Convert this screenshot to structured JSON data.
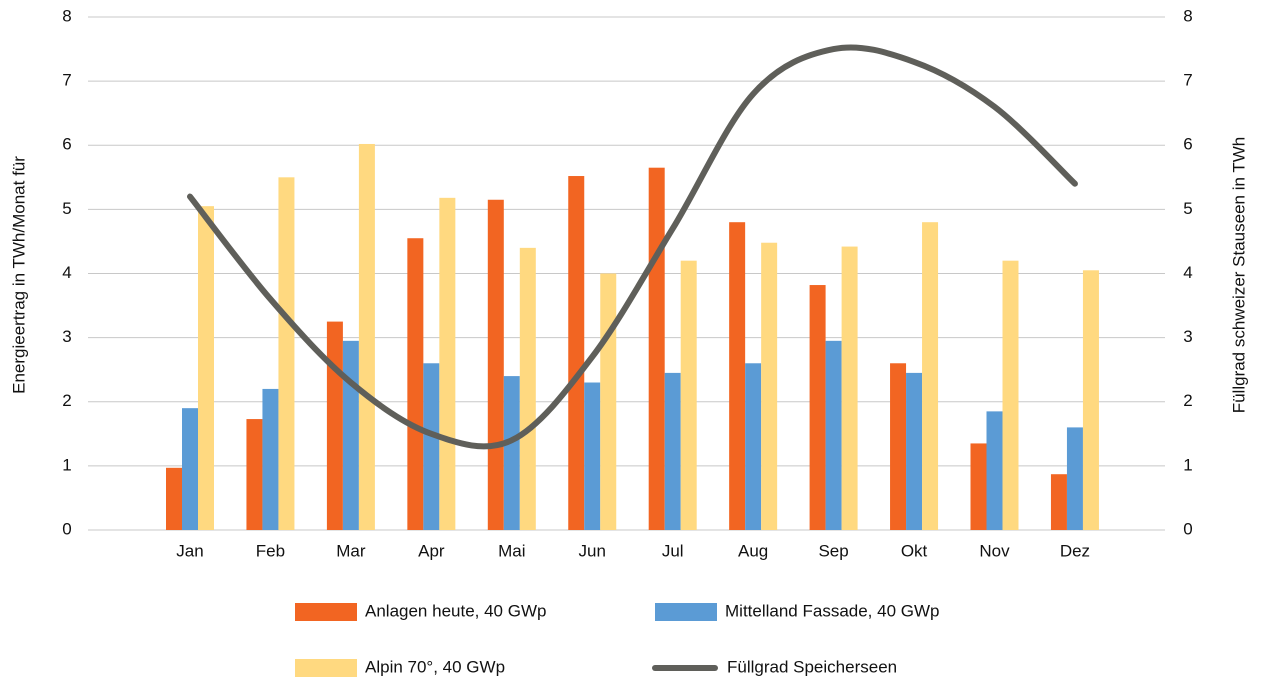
{
  "chart_data": {
    "type": "bar",
    "y_label": "Energieertrag in TWh/Monat für",
    "y2_label": "Füllgrad schweizer Stauseen in TWh",
    "categories": [
      "Jan",
      "Feb",
      "Mar",
      "Apr",
      "Mai",
      "Jun",
      "Jul",
      "Aug",
      "Sep",
      "Okt",
      "Nov",
      "Dez"
    ],
    "series": [
      {
        "name": "Anlagen heute, 40 GWp",
        "color": "#f26522",
        "values": [
          0.97,
          1.73,
          3.25,
          4.55,
          5.15,
          5.52,
          5.65,
          4.8,
          3.82,
          2.6,
          1.35,
          0.87
        ]
      },
      {
        "name": "Mittelland Fassade, 40 GWp",
        "color": "#5b9bd5",
        "values": [
          1.9,
          2.2,
          2.95,
          2.6,
          2.4,
          2.3,
          2.45,
          2.6,
          2.95,
          2.45,
          1.85,
          1.6
        ]
      },
      {
        "name": "Alpin 70°, 40 GWp",
        "color": "#ffd980",
        "values": [
          5.05,
          5.5,
          6.02,
          5.18,
          4.4,
          4.0,
          4.2,
          4.48,
          4.42,
          4.8,
          4.2,
          4.05
        ]
      },
      {
        "name": "Füllgrad Speicherseen",
        "color": "#5f5f5a",
        "type": "line",
        "axis": "y2",
        "values": [
          5.2,
          3.6,
          2.3,
          1.5,
          1.4,
          2.7,
          4.7,
          6.8,
          7.5,
          7.3,
          6.6,
          5.4
        ]
      }
    ],
    "ylim": [
      0,
      8
    ],
    "yticks": [
      0,
      1,
      2,
      3,
      4,
      5,
      6,
      7,
      8
    ],
    "y2lim": [
      0,
      8
    ],
    "y2ticks": [
      0,
      1,
      2,
      3,
      4,
      5,
      6,
      7,
      8
    ],
    "grid": true
  }
}
